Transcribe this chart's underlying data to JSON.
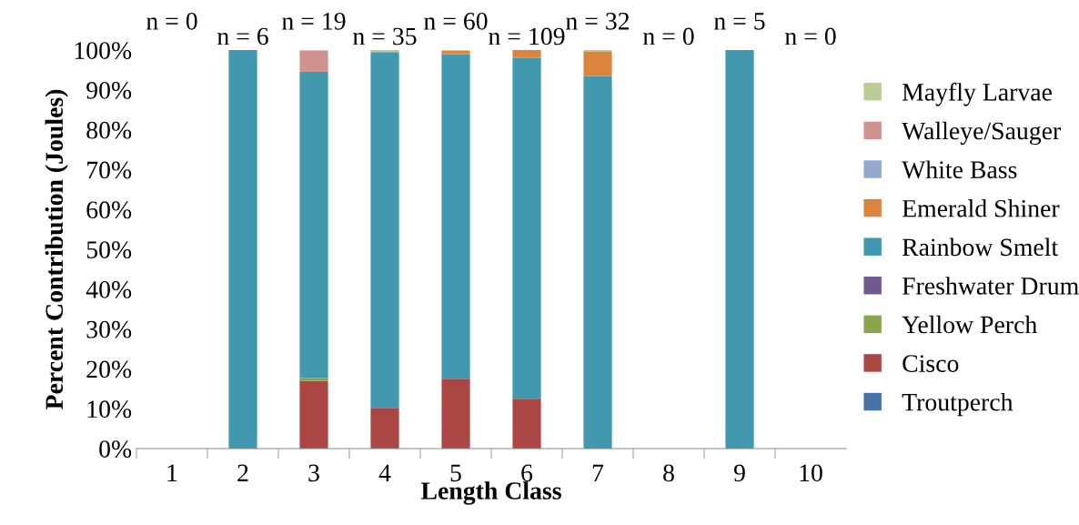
{
  "chart_data": {
    "type": "bar",
    "stacked": true,
    "xlabel": "Length Class",
    "ylabel": "Percent Contribution (Joules)",
    "categories": [
      "1",
      "2",
      "3",
      "4",
      "5",
      "6",
      "7",
      "8",
      "9",
      "10"
    ],
    "series": [
      {
        "name": "Troutperch",
        "color": "#4572a7",
        "values": [
          0,
          0,
          0,
          0,
          0,
          0,
          0,
          0,
          0,
          0
        ]
      },
      {
        "name": "Cisco",
        "color": "#aa4643",
        "values": [
          0,
          0,
          17,
          10.2,
          17.5,
          12.5,
          0,
          0,
          0,
          0
        ]
      },
      {
        "name": "Yellow Perch",
        "color": "#89a54e",
        "values": [
          0,
          0,
          0.7,
          0,
          0,
          0,
          0,
          0,
          0,
          0
        ]
      },
      {
        "name": "Freshwater Drum",
        "color": "#71588f",
        "values": [
          0,
          0,
          0,
          0,
          0,
          0,
          0,
          0,
          0,
          0
        ]
      },
      {
        "name": "Rainbow Smelt",
        "color": "#4198af",
        "values": [
          0,
          100,
          76.8,
          89.3,
          81.5,
          85.5,
          93.5,
          0,
          100,
          0
        ]
      },
      {
        "name": "Emerald Shiner",
        "color": "#db843d",
        "values": [
          0,
          0,
          0,
          0,
          0.8,
          2,
          6.2,
          0,
          0,
          0
        ]
      },
      {
        "name": "White Bass",
        "color": "#93a9cf",
        "values": [
          0,
          0,
          0,
          0,
          0,
          0,
          0,
          0,
          0,
          0
        ]
      },
      {
        "name": "Walleye/Sauger",
        "color": "#d19392",
        "values": [
          0,
          0,
          5.3,
          0,
          0,
          0,
          0,
          0,
          0,
          0
        ]
      },
      {
        "name": "Mayfly Larvae",
        "color": "#b9cd96",
        "values": [
          0,
          0,
          0.2,
          0.5,
          0.2,
          0,
          0.3,
          0,
          0,
          0
        ]
      }
    ],
    "ylim": [
      0,
      100
    ],
    "yticks": [
      {
        "value": 0,
        "label": "0%"
      },
      {
        "value": 10,
        "label": "10%"
      },
      {
        "value": 20,
        "label": "20%"
      },
      {
        "value": 30,
        "label": "30%"
      },
      {
        "value": 40,
        "label": "40%"
      },
      {
        "value": 50,
        "label": "50%"
      },
      {
        "value": 60,
        "label": "60%"
      },
      {
        "value": 70,
        "label": "70%"
      },
      {
        "value": 80,
        "label": "80%"
      },
      {
        "value": 90,
        "label": "90%"
      },
      {
        "value": 100,
        "label": "100%"
      }
    ],
    "grid": false,
    "legend": "right",
    "annotations": [
      "n = 0",
      "n = 6",
      "n = 19",
      "n = 35",
      "n = 60",
      "n = 109",
      "n = 32",
      "n = 0",
      "n = 5",
      "n = 0"
    ]
  }
}
